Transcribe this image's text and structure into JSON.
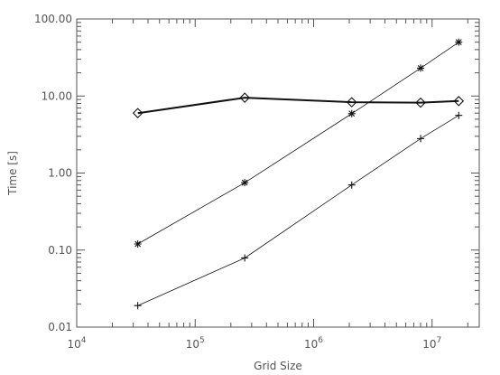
{
  "chart_data": {
    "type": "line",
    "title": "",
    "xlabel": "Grid Size",
    "ylabel": "Time [s]",
    "xscale": "log",
    "yscale": "log",
    "xlim": [
      10000,
      25000000
    ],
    "ylim": [
      0.01,
      100
    ],
    "grid": false,
    "legend": "none",
    "x_ticks": [
      {
        "value": 10000,
        "base": "10",
        "exp": "4"
      },
      {
        "value": 100000,
        "base": "10",
        "exp": "5"
      },
      {
        "value": 1000000,
        "base": "10",
        "exp": "6"
      },
      {
        "value": 10000000,
        "base": "10",
        "exp": "7"
      }
    ],
    "y_ticks": [
      {
        "value": 0.01,
        "label": "0.01"
      },
      {
        "value": 0.1,
        "label": "0.10"
      },
      {
        "value": 1,
        "label": "1.00"
      },
      {
        "value": 10,
        "label": "10.00"
      },
      {
        "value": 100,
        "label": "100.00"
      }
    ],
    "x": [
      32768,
      262144,
      2097152,
      8000000,
      16777216
    ],
    "series": [
      {
        "marker": "diamond",
        "line_weight": "thick",
        "values": [
          6.0,
          9.5,
          8.3,
          8.2,
          8.6
        ]
      },
      {
        "marker": "asterisk",
        "line_weight": "thin",
        "values": [
          0.12,
          0.75,
          5.9,
          23,
          50
        ]
      },
      {
        "marker": "plus",
        "line_weight": "thin",
        "values": [
          0.019,
          0.079,
          0.7,
          2.8,
          5.6
        ]
      }
    ],
    "colors": {
      "axis": "#555555",
      "series": "#111111",
      "background": "#ffffff"
    }
  }
}
